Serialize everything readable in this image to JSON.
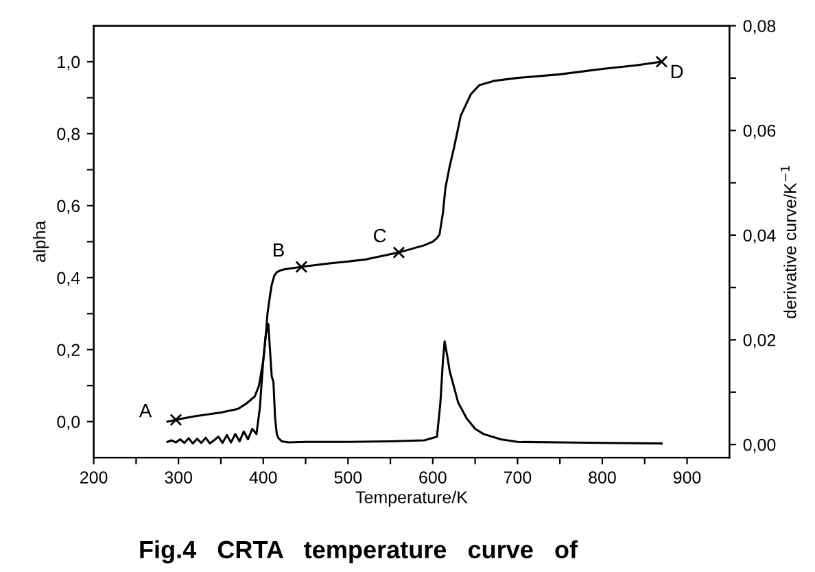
{
  "chart_data": {
    "type": "line",
    "xlabel": "Temperature/K",
    "ylabel": "alpha",
    "y2label": "derivative curve/K$^{−1}$",
    "xlim": [
      200,
      950
    ],
    "ylim": [
      -0.1,
      1.1
    ],
    "y2lim": [
      -0.0025,
      0.08
    ],
    "xticks": [
      200,
      {
        "value": 250,
        "label": null
      },
      300,
      {
        "value": 350,
        "label": null
      },
      400,
      {
        "value": 450,
        "label": null
      },
      500,
      {
        "value": 550,
        "label": null
      },
      600,
      {
        "value": 650,
        "label": null
      },
      700,
      {
        "value": 750,
        "label": null
      },
      800,
      {
        "value": 850,
        "label": null
      },
      900
    ],
    "yticks": [
      {
        "value": 0,
        "label": "0,0"
      },
      {
        "value": 0.1,
        "label": null
      },
      {
        "value": 0.2,
        "label": "0,2"
      },
      {
        "value": 0.3,
        "label": null
      },
      {
        "value": 0.4,
        "label": "0,4"
      },
      {
        "value": 0.5,
        "label": null
      },
      {
        "value": 0.6,
        "label": "0,6"
      },
      {
        "value": 0.7,
        "label": null
      },
      {
        "value": 0.8,
        "label": "0,8"
      },
      {
        "value": 0.9,
        "label": null
      },
      {
        "value": 1.0,
        "label": "1,0"
      }
    ],
    "y2ticks": [
      {
        "value": 0,
        "label": "0,00"
      },
      {
        "value": 0.01,
        "label": null
      },
      {
        "value": 0.02,
        "label": "0,02"
      },
      {
        "value": 0.03,
        "label": null
      },
      {
        "value": 0.04,
        "label": "0,04"
      },
      {
        "value": 0.05,
        "label": null
      },
      {
        "value": 0.06,
        "label": "0,06"
      },
      {
        "value": 0.07,
        "label": null
      },
      {
        "value": 0.08,
        "label": "0,08"
      }
    ],
    "grid": false,
    "legend": false,
    "series": [
      {
        "color": "#000000",
        "x": [
          287,
          297,
          320,
          350,
          370,
          380,
          390,
          395,
          400,
          403,
          405,
          408,
          410,
          413,
          416,
          420,
          425,
          445,
          480,
          520,
          560,
          590,
          600,
          605,
          608,
          612,
          615,
          620,
          625,
          633,
          645,
          655,
          673,
          700,
          750,
          800,
          840,
          870
        ],
        "values": [
          0.0,
          0.005,
          0.015,
          0.025,
          0.035,
          0.05,
          0.07,
          0.1,
          0.17,
          0.24,
          0.3,
          0.35,
          0.38,
          0.405,
          0.415,
          0.42,
          0.423,
          0.43,
          0.44,
          0.45,
          0.47,
          0.49,
          0.5,
          0.51,
          0.52,
          0.58,
          0.65,
          0.71,
          0.76,
          0.85,
          0.91,
          0.935,
          0.947,
          0.955,
          0.965,
          0.98,
          0.99,
          1.0
        ]
      },
      {
        "axis": "y2",
        "color": "#000000",
        "x": [
          287,
          292,
          297,
          302,
          307,
          312,
          317,
          322,
          327,
          332,
          337,
          342,
          347,
          352,
          357,
          362,
          367,
          372,
          377,
          382,
          387,
          392,
          396,
          400,
          403,
          406,
          408,
          410,
          412,
          414,
          416,
          418,
          422,
          430,
          450,
          500,
          550,
          590,
          605,
          609,
          612,
          614,
          617,
          620,
          625,
          630,
          640,
          650,
          660,
          680,
          700,
          750,
          800,
          870
        ],
        "values": [
          0.0005,
          0.0008,
          0.0004,
          0.001,
          0.0003,
          0.0012,
          0.0002,
          0.0011,
          0.0003,
          0.0013,
          0.0002,
          0.0008,
          0.0015,
          0.0003,
          0.0018,
          0.0004,
          0.002,
          0.0006,
          0.0025,
          0.001,
          0.003,
          0.002,
          0.007,
          0.016,
          0.021,
          0.023,
          0.018,
          0.013,
          0.012,
          0.005,
          0.002,
          0.0012,
          0.0006,
          0.0004,
          0.0005,
          0.0005,
          0.0006,
          0.0008,
          0.0015,
          0.008,
          0.016,
          0.0197,
          0.017,
          0.014,
          0.011,
          0.008,
          0.005,
          0.003,
          0.002,
          0.001,
          0.0005,
          0.0004,
          0.0003,
          0.0002
        ]
      },
      {
        "type": "scatter",
        "color": "#000000",
        "marker": "cross",
        "x": [
          297,
          445,
          560,
          870
        ],
        "values": [
          0.005,
          0.43,
          0.47,
          1.0
        ]
      }
    ],
    "annotations": [
      {
        "text": "A",
        "x": 297,
        "y": 0.005
      },
      {
        "text": "B",
        "x": 445,
        "y": 0.43
      },
      {
        "text": "C",
        "x": 560,
        "y": 0.47
      },
      {
        "text": "D",
        "x": 870,
        "y": 1.0
      },
      "Fig.4   CRTA   temperature   curve   of"
    ]
  }
}
